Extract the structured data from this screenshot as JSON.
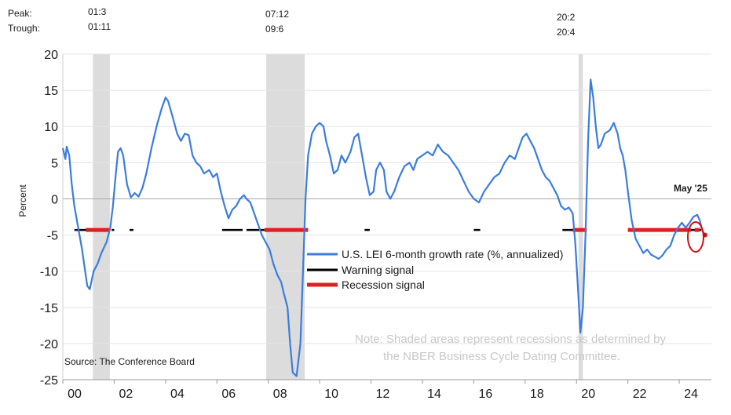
{
  "chart_data": {
    "type": "line",
    "ylabel": "Percent",
    "ylim": [
      -25,
      20
    ],
    "xlim": [
      2000.0,
      2025.0
    ],
    "yticks": [
      20,
      15,
      10,
      5,
      0,
      -5,
      -10,
      -15,
      -20,
      -25
    ],
    "xtick_labels": [
      "00",
      "02",
      "04",
      "06",
      "08",
      "10",
      "12",
      "14",
      "16",
      "18",
      "20",
      "22",
      "24"
    ],
    "xtick_values": [
      2000,
      2002,
      2004,
      2006,
      2008,
      2010,
      2012,
      2014,
      2016,
      2018,
      2020,
      2022,
      2024
    ],
    "peak_trough_header": {
      "peak_label": "Peak:",
      "trough_label": "Trough:"
    },
    "recessions": [
      {
        "peak": "01:3",
        "trough": "01:11",
        "start": 2001.17,
        "end": 2001.83
      },
      {
        "peak": "07:12",
        "trough": "09:6",
        "start": 2007.92,
        "end": 2009.42
      },
      {
        "peak": "20:2",
        "trough": "20:4",
        "start": 2020.08,
        "end": 2020.25
      }
    ],
    "series": [
      {
        "name": "U.S. LEI 6-month growth rate (%, annualized)",
        "color": "#3b7ddd",
        "points": [
          [
            2000.0,
            7
          ],
          [
            2000.1,
            5.5
          ],
          [
            2000.15,
            7.2
          ],
          [
            2000.25,
            6
          ],
          [
            2000.35,
            2
          ],
          [
            2000.45,
            -1
          ],
          [
            2000.6,
            -4
          ],
          [
            2000.75,
            -7
          ],
          [
            2000.85,
            -9.5
          ],
          [
            2000.95,
            -12
          ],
          [
            2001.05,
            -12.5
          ],
          [
            2001.2,
            -10
          ],
          [
            2001.35,
            -9
          ],
          [
            2001.5,
            -7.5
          ],
          [
            2001.7,
            -6
          ],
          [
            2001.85,
            -4
          ],
          [
            2001.95,
            -1
          ],
          [
            2002.05,
            3
          ],
          [
            2002.15,
            6.5
          ],
          [
            2002.25,
            7
          ],
          [
            2002.35,
            6
          ],
          [
            2002.5,
            2
          ],
          [
            2002.65,
            0.2
          ],
          [
            2002.8,
            0.8
          ],
          [
            2002.95,
            0.3
          ],
          [
            2003.1,
            1.5
          ],
          [
            2003.25,
            3.5
          ],
          [
            2003.45,
            7
          ],
          [
            2003.65,
            10
          ],
          [
            2003.85,
            12.5
          ],
          [
            2004.0,
            14
          ],
          [
            2004.1,
            13.5
          ],
          [
            2004.3,
            11
          ],
          [
            2004.45,
            9
          ],
          [
            2004.6,
            8
          ],
          [
            2004.75,
            9
          ],
          [
            2004.9,
            8.8
          ],
          [
            2005.05,
            6
          ],
          [
            2005.2,
            5
          ],
          [
            2005.35,
            4.5
          ],
          [
            2005.5,
            3.5
          ],
          [
            2005.7,
            4
          ],
          [
            2005.85,
            3
          ],
          [
            2006.0,
            3.5
          ],
          [
            2006.15,
            1
          ],
          [
            2006.3,
            -1
          ],
          [
            2006.45,
            -2.7
          ],
          [
            2006.6,
            -1.5
          ],
          [
            2006.75,
            -1
          ],
          [
            2006.9,
            0
          ],
          [
            2007.05,
            0.5
          ],
          [
            2007.15,
            0
          ],
          [
            2007.3,
            -0.5
          ],
          [
            2007.45,
            -2
          ],
          [
            2007.6,
            -3.5
          ],
          [
            2007.75,
            -5
          ],
          [
            2007.9,
            -6
          ],
          [
            2008.05,
            -7
          ],
          [
            2008.2,
            -9
          ],
          [
            2008.35,
            -10.5
          ],
          [
            2008.5,
            -11.5
          ],
          [
            2008.6,
            -13
          ],
          [
            2008.75,
            -15
          ],
          [
            2008.85,
            -20
          ],
          [
            2008.95,
            -24
          ],
          [
            2009.1,
            -24.5
          ],
          [
            2009.25,
            -20
          ],
          [
            2009.35,
            -10
          ],
          [
            2009.45,
            0
          ],
          [
            2009.55,
            6
          ],
          [
            2009.7,
            9
          ],
          [
            2009.85,
            10
          ],
          [
            2010.0,
            10.5
          ],
          [
            2010.15,
            10
          ],
          [
            2010.25,
            8
          ],
          [
            2010.4,
            6
          ],
          [
            2010.55,
            3.5
          ],
          [
            2010.7,
            4
          ],
          [
            2010.85,
            6
          ],
          [
            2011.0,
            5
          ],
          [
            2011.2,
            6.5
          ],
          [
            2011.35,
            8.5
          ],
          [
            2011.5,
            9
          ],
          [
            2011.65,
            6
          ],
          [
            2011.8,
            3
          ],
          [
            2011.95,
            0.5
          ],
          [
            2012.1,
            1
          ],
          [
            2012.2,
            4
          ],
          [
            2012.35,
            5
          ],
          [
            2012.5,
            4
          ],
          [
            2012.6,
            1
          ],
          [
            2012.75,
            0
          ],
          [
            2012.9,
            1
          ],
          [
            2013.1,
            3
          ],
          [
            2013.3,
            4.5
          ],
          [
            2013.5,
            5
          ],
          [
            2013.65,
            4
          ],
          [
            2013.8,
            5.5
          ],
          [
            2014.0,
            6
          ],
          [
            2014.2,
            6.5
          ],
          [
            2014.4,
            6
          ],
          [
            2014.6,
            7.5
          ],
          [
            2014.8,
            6.5
          ],
          [
            2015.0,
            6
          ],
          [
            2015.2,
            5
          ],
          [
            2015.4,
            4
          ],
          [
            2015.6,
            2.5
          ],
          [
            2015.8,
            1
          ],
          [
            2016.0,
            0
          ],
          [
            2016.2,
            -0.5
          ],
          [
            2016.4,
            1
          ],
          [
            2016.6,
            2
          ],
          [
            2016.8,
            3
          ],
          [
            2017.0,
            3.5
          ],
          [
            2017.2,
            5
          ],
          [
            2017.4,
            6
          ],
          [
            2017.6,
            5.5
          ],
          [
            2017.8,
            7.5
          ],
          [
            2017.9,
            8.5
          ],
          [
            2018.05,
            9
          ],
          [
            2018.2,
            8
          ],
          [
            2018.35,
            7
          ],
          [
            2018.5,
            5.5
          ],
          [
            2018.65,
            4
          ],
          [
            2018.8,
            3
          ],
          [
            2018.95,
            2.5
          ],
          [
            2019.1,
            1.5
          ],
          [
            2019.25,
            0.5
          ],
          [
            2019.4,
            -1
          ],
          [
            2019.55,
            -1.5
          ],
          [
            2019.7,
            -1.2
          ],
          [
            2019.85,
            -2
          ],
          [
            2019.95,
            -6
          ],
          [
            2020.05,
            -12
          ],
          [
            2020.15,
            -18.5
          ],
          [
            2020.25,
            -15
          ],
          [
            2020.35,
            -5
          ],
          [
            2020.45,
            8
          ],
          [
            2020.55,
            16.5
          ],
          [
            2020.65,
            14
          ],
          [
            2020.75,
            10
          ],
          [
            2020.85,
            7
          ],
          [
            2020.95,
            7.5
          ],
          [
            2021.1,
            9
          ],
          [
            2021.3,
            9.5
          ],
          [
            2021.45,
            10.5
          ],
          [
            2021.6,
            9
          ],
          [
            2021.7,
            7
          ],
          [
            2021.8,
            6
          ],
          [
            2021.9,
            4
          ],
          [
            2022.0,
            1
          ],
          [
            2022.15,
            -3
          ],
          [
            2022.3,
            -5.5
          ],
          [
            2022.45,
            -6.5
          ],
          [
            2022.6,
            -7.5
          ],
          [
            2022.75,
            -7
          ],
          [
            2022.9,
            -7.7
          ],
          [
            2023.05,
            -8
          ],
          [
            2023.2,
            -8.3
          ],
          [
            2023.35,
            -7.8
          ],
          [
            2023.5,
            -7
          ],
          [
            2023.65,
            -6.5
          ],
          [
            2023.8,
            -5
          ],
          [
            2023.95,
            -4
          ],
          [
            2024.1,
            -3.3
          ],
          [
            2024.25,
            -4
          ],
          [
            2024.4,
            -3.3
          ],
          [
            2024.55,
            -2.5
          ],
          [
            2024.7,
            -2.2
          ],
          [
            2024.8,
            -3
          ],
          [
            2024.9,
            -4.5
          ],
          [
            2025.0,
            -5
          ]
        ]
      },
      {
        "name": "Warning signal",
        "color": "#000000",
        "segments": [
          [
            2000.45,
            2001.2
          ],
          [
            2001.9,
            2002.0
          ],
          [
            2002.6,
            2002.75
          ],
          [
            2006.2,
            2007.0
          ],
          [
            2007.15,
            2007.85
          ],
          [
            2011.75,
            2011.95
          ],
          [
            2016.0,
            2016.25
          ],
          [
            2019.45,
            2020.0
          ],
          [
            2023.6,
            2024.85
          ]
        ],
        "level": -4.3
      },
      {
        "name": "Recession signal",
        "color": "#e02020",
        "segments": [
          [
            2000.9,
            2001.85
          ],
          [
            2007.85,
            2009.55
          ],
          [
            2019.85,
            2020.4
          ],
          [
            2022.0,
            2024.45
          ],
          [
            2024.6,
            2024.8
          ]
        ],
        "level": -4.3
      }
    ],
    "annotations": {
      "last_point_label": "May '25",
      "note_line1": "Note: Shaded areas represent recessions as determined by",
      "note_line2": "the NBER Business Cycle Dating Committee.",
      "source": "Source: The Conference Board"
    },
    "legend_position": "middle"
  }
}
